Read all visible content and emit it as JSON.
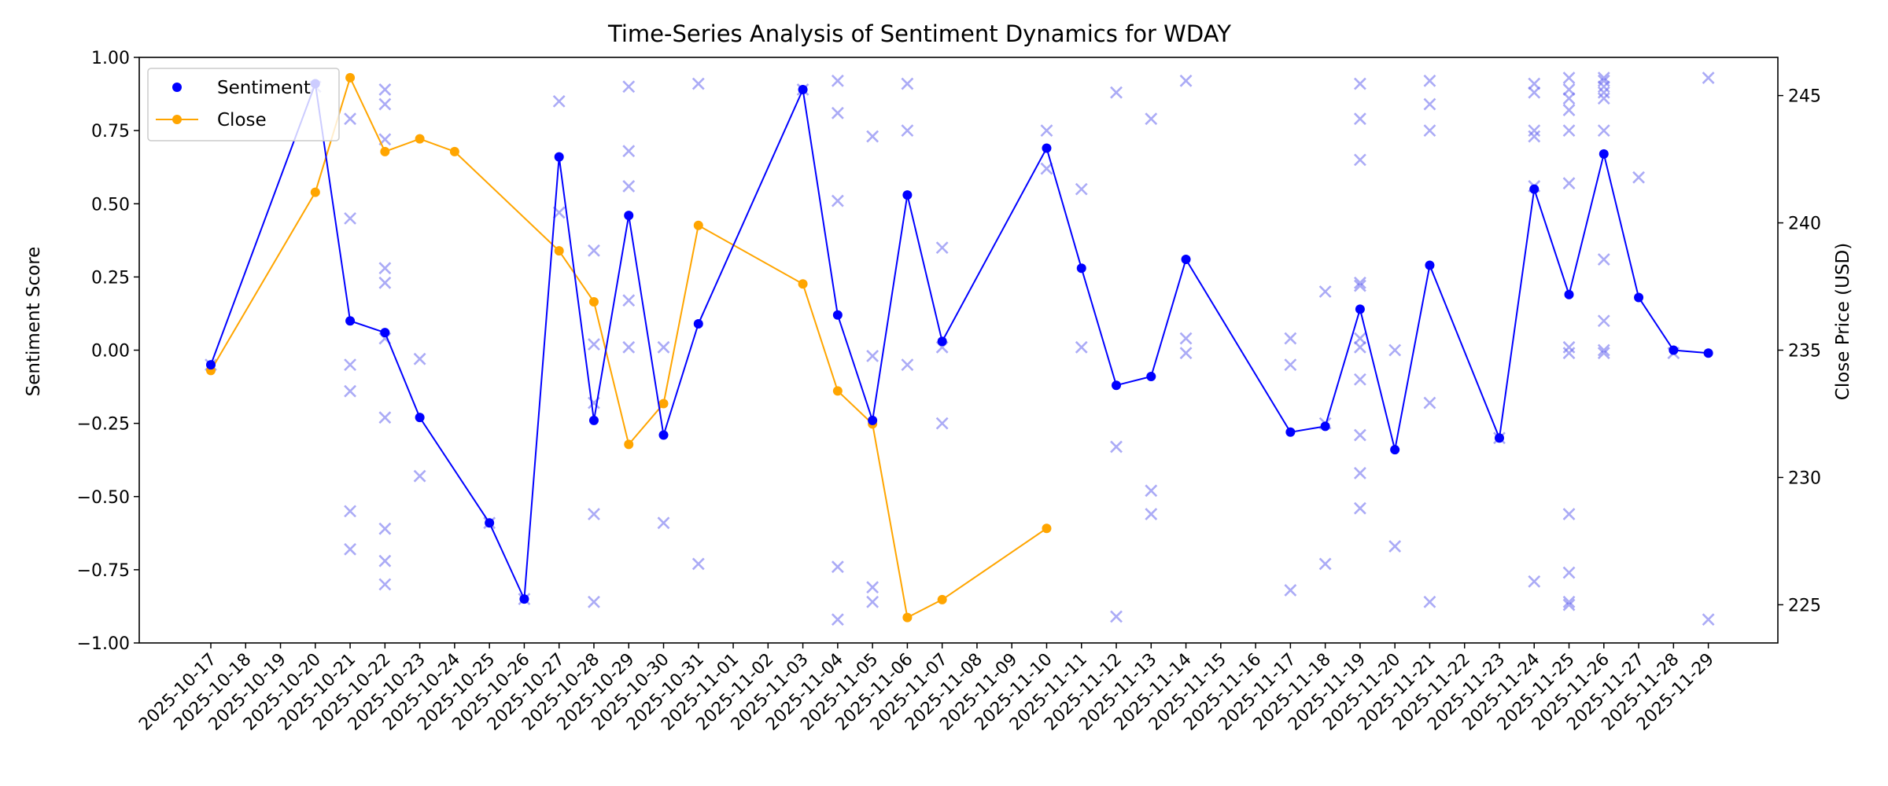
{
  "chart_data": {
    "type": "line",
    "title": "Time-Series Analysis of Sentiment Dynamics for WDAY",
    "xlabel": "",
    "ylabel": "Sentiment Score",
    "y2label": "Close Price (USD)",
    "ylim": [
      -1.0,
      1.0
    ],
    "y2lim": [
      223.5,
      246.5
    ],
    "yticks": [
      -1.0,
      -0.75,
      -0.5,
      -0.25,
      0.0,
      0.25,
      0.5,
      0.75,
      1.0
    ],
    "ytick_labels": [
      "−1.00",
      "−0.75",
      "−0.50",
      "−0.25",
      "0.00",
      "0.25",
      "0.50",
      "0.75",
      "1.00"
    ],
    "y2ticks": [
      225,
      230,
      235,
      240,
      245
    ],
    "y2tick_labels": [
      "225",
      "230",
      "235",
      "240",
      "245"
    ],
    "categories": [
      "2025-10-17",
      "2025-10-18",
      "2025-10-19",
      "2025-10-20",
      "2025-10-21",
      "2025-10-22",
      "2025-10-23",
      "2025-10-24",
      "2025-10-25",
      "2025-10-26",
      "2025-10-27",
      "2025-10-28",
      "2025-10-29",
      "2025-10-30",
      "2025-10-31",
      "2025-11-01",
      "2025-11-02",
      "2025-11-03",
      "2025-11-04",
      "2025-11-05",
      "2025-11-06",
      "2025-11-07",
      "2025-11-08",
      "2025-11-09",
      "2025-11-10",
      "2025-11-11",
      "2025-11-12",
      "2025-11-13",
      "2025-11-14",
      "2025-11-15",
      "2025-11-16",
      "2025-11-17",
      "2025-11-18",
      "2025-11-19",
      "2025-11-20",
      "2025-11-21",
      "2025-11-22",
      "2025-11-23",
      "2025-11-24",
      "2025-11-25",
      "2025-11-26",
      "2025-11-27",
      "2025-11-28",
      "2025-11-29"
    ],
    "legend": {
      "position": "top-left"
    },
    "series": [
      {
        "name": "Sentiment",
        "color": "#0000ff",
        "axis": "left",
        "marker": "circle",
        "x": [
          "2025-10-17",
          "2025-10-20",
          "2025-10-21",
          "2025-10-22",
          "2025-10-23",
          "2025-10-25",
          "2025-10-26",
          "2025-10-27",
          "2025-10-28",
          "2025-10-29",
          "2025-10-30",
          "2025-10-31",
          "2025-11-03",
          "2025-11-04",
          "2025-11-05",
          "2025-11-06",
          "2025-11-07",
          "2025-11-10",
          "2025-11-11",
          "2025-11-12",
          "2025-11-13",
          "2025-11-14",
          "2025-11-17",
          "2025-11-18",
          "2025-11-19",
          "2025-11-20",
          "2025-11-21",
          "2025-11-23",
          "2025-11-24",
          "2025-11-25",
          "2025-11-26",
          "2025-11-27",
          "2025-11-28",
          "2025-11-29"
        ],
        "values": [
          -0.05,
          0.91,
          0.1,
          0.06,
          -0.23,
          -0.59,
          -0.85,
          0.66,
          -0.24,
          0.46,
          -0.29,
          0.09,
          0.89,
          0.12,
          -0.24,
          0.53,
          0.03,
          0.69,
          0.28,
          -0.12,
          -0.09,
          0.31,
          -0.28,
          -0.26,
          0.14,
          -0.34,
          0.29,
          -0.3,
          0.55,
          0.19,
          0.67,
          0.18,
          0.0,
          -0.01
        ]
      },
      {
        "name": "Close",
        "color": "#ffa500",
        "axis": "right",
        "marker": "circle",
        "x": [
          "2025-10-17",
          "2025-10-20",
          "2025-10-21",
          "2025-10-22",
          "2025-10-23",
          "2025-10-24",
          "2025-10-27",
          "2025-10-28",
          "2025-10-29",
          "2025-10-30",
          "2025-10-31",
          "2025-11-03",
          "2025-11-04",
          "2025-11-05",
          "2025-11-06",
          "2025-11-07",
          "2025-11-10"
        ],
        "values": [
          234.2,
          241.2,
          245.7,
          242.8,
          243.3,
          242.8,
          238.9,
          236.9,
          231.3,
          232.9,
          239.9,
          237.6,
          233.4,
          232.1,
          224.5,
          225.2,
          228.0
        ]
      },
      {
        "name": "",
        "color": "#6666ee",
        "axis": "left",
        "marker": "x",
        "points": [
          [
            "2025-10-17",
            -0.05
          ],
          [
            "2025-10-20",
            0.9
          ],
          [
            "2025-10-21",
            0.79
          ],
          [
            "2025-10-21",
            0.45
          ],
          [
            "2025-10-21",
            -0.05
          ],
          [
            "2025-10-21",
            -0.14
          ],
          [
            "2025-10-21",
            -0.55
          ],
          [
            "2025-10-21",
            -0.68
          ],
          [
            "2025-10-22",
            0.89
          ],
          [
            "2025-10-22",
            0.84
          ],
          [
            "2025-10-22",
            0.72
          ],
          [
            "2025-10-22",
            0.28
          ],
          [
            "2025-10-22",
            0.23
          ],
          [
            "2025-10-22",
            0.04
          ],
          [
            "2025-10-22",
            -0.23
          ],
          [
            "2025-10-22",
            -0.61
          ],
          [
            "2025-10-22",
            -0.72
          ],
          [
            "2025-10-22",
            -0.8
          ],
          [
            "2025-10-23",
            -0.03
          ],
          [
            "2025-10-23",
            -0.43
          ],
          [
            "2025-10-25",
            -0.59
          ],
          [
            "2025-10-26",
            -0.85
          ],
          [
            "2025-10-27",
            0.85
          ],
          [
            "2025-10-27",
            0.47
          ],
          [
            "2025-10-28",
            0.34
          ],
          [
            "2025-10-28",
            0.02
          ],
          [
            "2025-10-28",
            -0.18
          ],
          [
            "2025-10-28",
            -0.56
          ],
          [
            "2025-10-28",
            -0.86
          ],
          [
            "2025-10-29",
            0.9
          ],
          [
            "2025-10-29",
            0.68
          ],
          [
            "2025-10-29",
            0.56
          ],
          [
            "2025-10-29",
            0.17
          ],
          [
            "2025-10-29",
            0.01
          ],
          [
            "2025-10-30",
            0.01
          ],
          [
            "2025-10-30",
            -0.59
          ],
          [
            "2025-10-31",
            0.91
          ],
          [
            "2025-10-31",
            -0.73
          ],
          [
            "2025-11-03",
            0.89
          ],
          [
            "2025-11-04",
            0.92
          ],
          [
            "2025-11-04",
            0.81
          ],
          [
            "2025-11-04",
            0.51
          ],
          [
            "2025-11-04",
            -0.74
          ],
          [
            "2025-11-04",
            -0.92
          ],
          [
            "2025-11-05",
            0.73
          ],
          [
            "2025-11-05",
            -0.02
          ],
          [
            "2025-11-05",
            -0.81
          ],
          [
            "2025-11-05",
            -0.86
          ],
          [
            "2025-11-06",
            0.91
          ],
          [
            "2025-11-06",
            0.75
          ],
          [
            "2025-11-06",
            -0.05
          ],
          [
            "2025-11-07",
            0.35
          ],
          [
            "2025-11-07",
            0.01
          ],
          [
            "2025-11-07",
            -0.25
          ],
          [
            "2025-11-10",
            0.75
          ],
          [
            "2025-11-10",
            0.62
          ],
          [
            "2025-11-11",
            0.55
          ],
          [
            "2025-11-11",
            0.01
          ],
          [
            "2025-11-12",
            0.88
          ],
          [
            "2025-11-12",
            -0.33
          ],
          [
            "2025-11-12",
            -0.91
          ],
          [
            "2025-11-13",
            0.79
          ],
          [
            "2025-11-13",
            -0.48
          ],
          [
            "2025-11-13",
            -0.56
          ],
          [
            "2025-11-14",
            0.92
          ],
          [
            "2025-11-14",
            0.04
          ],
          [
            "2025-11-14",
            -0.01
          ],
          [
            "2025-11-17",
            0.04
          ],
          [
            "2025-11-17",
            -0.05
          ],
          [
            "2025-11-17",
            -0.82
          ],
          [
            "2025-11-18",
            0.2
          ],
          [
            "2025-11-18",
            -0.25
          ],
          [
            "2025-11-18",
            -0.73
          ],
          [
            "2025-11-19",
            0.91
          ],
          [
            "2025-11-19",
            0.79
          ],
          [
            "2025-11-19",
            0.65
          ],
          [
            "2025-11-19",
            0.23
          ],
          [
            "2025-11-19",
            0.22
          ],
          [
            "2025-11-19",
            0.04
          ],
          [
            "2025-11-19",
            0.01
          ],
          [
            "2025-11-19",
            -0.1
          ],
          [
            "2025-11-19",
            -0.29
          ],
          [
            "2025-11-19",
            -0.42
          ],
          [
            "2025-11-19",
            -0.54
          ],
          [
            "2025-11-20",
            0.0
          ],
          [
            "2025-11-20",
            -0.67
          ],
          [
            "2025-11-21",
            0.92
          ],
          [
            "2025-11-21",
            0.84
          ],
          [
            "2025-11-21",
            0.75
          ],
          [
            "2025-11-21",
            -0.18
          ],
          [
            "2025-11-21",
            -0.86
          ],
          [
            "2025-11-23",
            -0.3
          ],
          [
            "2025-11-24",
            0.91
          ],
          [
            "2025-11-24",
            0.88
          ],
          [
            "2025-11-24",
            0.75
          ],
          [
            "2025-11-24",
            0.73
          ],
          [
            "2025-11-24",
            0.56
          ],
          [
            "2025-11-24",
            -0.79
          ],
          [
            "2025-11-25",
            0.93
          ],
          [
            "2025-11-25",
            0.89
          ],
          [
            "2025-11-25",
            0.86
          ],
          [
            "2025-11-25",
            0.82
          ],
          [
            "2025-11-25",
            0.75
          ],
          [
            "2025-11-25",
            0.57
          ],
          [
            "2025-11-25",
            0.01
          ],
          [
            "2025-11-25",
            -0.01
          ],
          [
            "2025-11-25",
            -0.56
          ],
          [
            "2025-11-25",
            -0.76
          ],
          [
            "2025-11-25",
            -0.86
          ],
          [
            "2025-11-25",
            -0.87
          ],
          [
            "2025-11-26",
            0.93
          ],
          [
            "2025-11-26",
            0.92
          ],
          [
            "2025-11-26",
            0.9
          ],
          [
            "2025-11-26",
            0.88
          ],
          [
            "2025-11-26",
            0.86
          ],
          [
            "2025-11-26",
            0.75
          ],
          [
            "2025-11-26",
            0.31
          ],
          [
            "2025-11-26",
            0.1
          ],
          [
            "2025-11-26",
            0.0
          ],
          [
            "2025-11-26",
            -0.01
          ],
          [
            "2025-11-27",
            0.59
          ],
          [
            "2025-11-28",
            -0.01
          ],
          [
            "2025-11-29",
            0.93
          ],
          [
            "2025-11-29",
            -0.92
          ]
        ]
      }
    ]
  }
}
